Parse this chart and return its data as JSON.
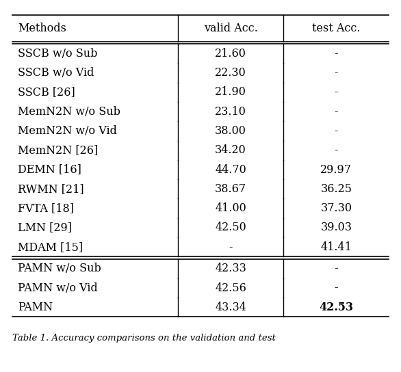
{
  "col_headers": [
    "Methods",
    "valid Acc.",
    "test Acc."
  ],
  "rows": [
    [
      "SSCB w/o Sub",
      "21.60",
      "-"
    ],
    [
      "SSCB w/o Vid",
      "22.30",
      "-"
    ],
    [
      "SSCB [26]",
      "21.90",
      "-"
    ],
    [
      "MemN2N w/o Sub",
      "23.10",
      "-"
    ],
    [
      "MemN2N w/o Vid",
      "38.00",
      "-"
    ],
    [
      "MemN2N [26]",
      "34.20",
      "-"
    ],
    [
      "DEMN [16]",
      "44.70",
      "29.97"
    ],
    [
      "RWMN [21]",
      "38.67",
      "36.25"
    ],
    [
      "FVTA [18]",
      "41.00",
      "37.30"
    ],
    [
      "LMN [29]",
      "42.50",
      "39.03"
    ],
    [
      "MDAM [15]",
      "-",
      "41.41"
    ],
    [
      "PAMN w/o Sub",
      "42.33",
      "-"
    ],
    [
      "PAMN w/o Vid",
      "42.56",
      "-"
    ],
    [
      "PAMN",
      "43.34",
      "42.53"
    ]
  ],
  "bold_cells": [
    [
      13,
      2
    ]
  ],
  "font_size": 11.5,
  "header_font_size": 11.5,
  "caption_font_size": 9.5,
  "fig_width": 5.86,
  "fig_height": 5.44,
  "background_color": "#ffffff",
  "text_color": "#000000",
  "caption": "Table 1. Accuracy comparisons on the validation and test"
}
